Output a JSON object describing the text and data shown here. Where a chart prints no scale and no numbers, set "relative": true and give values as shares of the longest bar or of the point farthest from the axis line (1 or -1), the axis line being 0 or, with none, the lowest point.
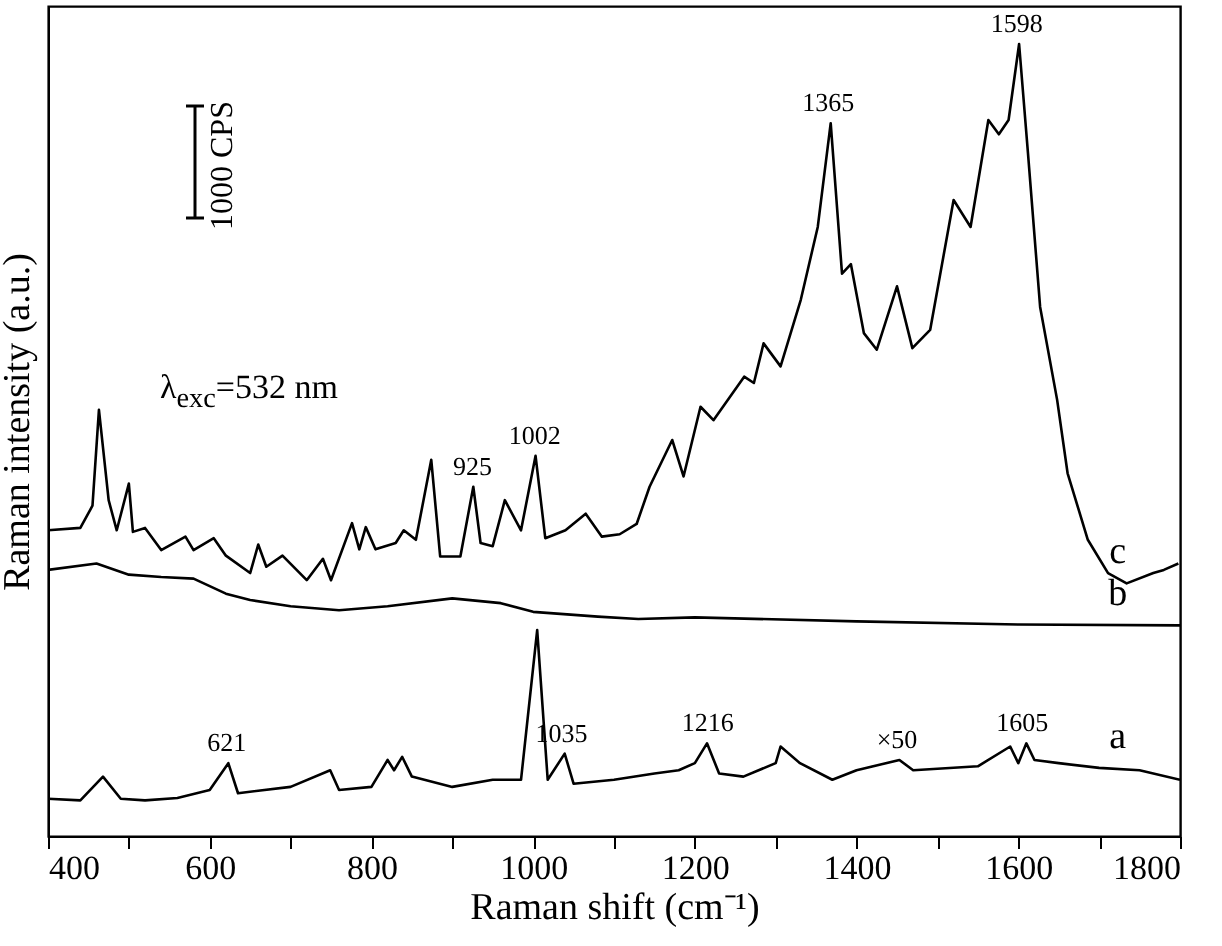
{
  "chart_data": {
    "type": "line",
    "relative": true,
    "xlabel": "Raman shift (cm⁻¹)",
    "ylabel": "Raman intensity (a.u.)",
    "xlim": [
      400,
      1800
    ],
    "xticks": [
      400,
      {
        "value": 500,
        "label": null
      },
      600,
      {
        "value": 700,
        "label": null
      },
      800,
      {
        "value": 900,
        "label": null
      },
      1000,
      {
        "value": 1100,
        "label": null
      },
      1200,
      {
        "value": 1300,
        "label": null
      },
      1400,
      {
        "value": 1500,
        "label": null
      },
      1600,
      {
        "value": 1700,
        "label": null
      },
      1800
    ],
    "line_style": "solid",
    "marker": "none",
    "series": [
      {
        "name": "a",
        "color": "#000000",
        "x": [
          400,
          440,
          468,
          490,
          520,
          560,
          600,
          623,
          635,
          700,
          749,
          760,
          800,
          820,
          828,
          838,
          850,
          900,
          950,
          985,
          1005,
          1018,
          1039,
          1050,
          1100,
          1150,
          1180,
          1200,
          1215,
          1230,
          1260,
          1300,
          1306,
          1330,
          1370,
          1400,
          1453,
          1470,
          1550,
          1590,
          1600,
          1610,
          1620,
          1650,
          1700,
          1750,
          1800
        ],
        "values": [
          0.047,
          0.045,
          0.075,
          0.047,
          0.045,
          0.048,
          0.058,
          0.092,
          0.054,
          0.062,
          0.083,
          0.058,
          0.062,
          0.096,
          0.083,
          0.1,
          0.075,
          0.062,
          0.071,
          0.071,
          0.26,
          0.071,
          0.104,
          0.066,
          0.071,
          0.079,
          0.083,
          0.092,
          0.117,
          0.079,
          0.075,
          0.092,
          0.113,
          0.092,
          0.071,
          0.083,
          0.096,
          0.083,
          0.088,
          0.113,
          0.092,
          0.117,
          0.096,
          0.092,
          0.086,
          0.083,
          0.071
        ]
      },
      {
        "name": "b",
        "color": "#000000",
        "x": [
          400,
          460,
          500,
          540,
          580,
          620,
          650,
          700,
          760,
          820,
          900,
          960,
          1000,
          1080,
          1130,
          1200,
          1400,
          1600,
          1800
        ],
        "values": [
          0.336,
          0.344,
          0.33,
          0.327,
          0.325,
          0.306,
          0.298,
          0.29,
          0.285,
          0.29,
          0.3,
          0.294,
          0.283,
          0.277,
          0.274,
          0.276,
          0.271,
          0.267,
          0.266
        ]
      },
      {
        "name": "c",
        "color": "#000000",
        "x": [
          400,
          440,
          455,
          463,
          475,
          485,
          500,
          505,
          520,
          540,
          570,
          580,
          605,
          620,
          650,
          660,
          670,
          690,
          720,
          740,
          750,
          776,
          785,
          793,
          805,
          830,
          840,
          855,
          874,
          885,
          910,
          926,
          935,
          950,
          965,
          985,
          1003,
          1015,
          1040,
          1065,
          1085,
          1107,
          1128,
          1144,
          1172,
          1186,
          1207,
          1223,
          1261,
          1273,
          1285,
          1306,
          1331,
          1352,
          1368,
          1382,
          1393,
          1409,
          1425,
          1450,
          1469,
          1491,
          1520,
          1541,
          1563,
          1576,
          1588,
          1601,
          1612,
          1627,
          1648,
          1661,
          1686,
          1711,
          1734,
          1767,
          1780,
          1798
        ],
        "values": [
          0.386,
          0.389,
          0.417,
          0.538,
          0.424,
          0.386,
          0.445,
          0.384,
          0.389,
          0.361,
          0.378,
          0.361,
          0.376,
          0.354,
          0.332,
          0.368,
          0.34,
          0.354,
          0.323,
          0.35,
          0.323,
          0.395,
          0.362,
          0.39,
          0.362,
          0.37,
          0.386,
          0.374,
          0.475,
          0.353,
          0.353,
          0.441,
          0.37,
          0.366,
          0.424,
          0.386,
          0.48,
          0.376,
          0.386,
          0.407,
          0.378,
          0.381,
          0.394,
          0.441,
          0.5,
          0.454,
          0.542,
          0.525,
          0.58,
          0.572,
          0.622,
          0.593,
          0.677,
          0.769,
          0.9,
          0.71,
          0.722,
          0.635,
          0.614,
          0.694,
          0.616,
          0.639,
          0.803,
          0.769,
          0.904,
          0.886,
          0.904,
          1.0,
          0.862,
          0.668,
          0.551,
          0.458,
          0.374,
          0.332,
          0.319,
          0.332,
          0.336,
          0.344
        ]
      }
    ],
    "annotations": [
      {
        "text": "1365",
        "x": 1365,
        "y": 0.9
      },
      {
        "text": "1598",
        "x": 1598,
        "y": 1.0
      },
      {
        "text": "925",
        "x": 925,
        "y": 0.441
      },
      {
        "text": "1002",
        "x": 1002,
        "y": 0.48
      },
      {
        "text": "621",
        "x": 621,
        "y": 0.092
      },
      {
        "text": "1035",
        "x": 1035,
        "y": 0.104
      },
      {
        "text": "1216",
        "x": 1216,
        "y": 0.117
      },
      {
        "text": "×50",
        "x": 1450,
        "y": 0.096
      },
      {
        "text": "1605",
        "x": 1605,
        "y": 0.117
      },
      "λ$_{exc}$=532 nm",
      "1000 CPS"
    ]
  }
}
